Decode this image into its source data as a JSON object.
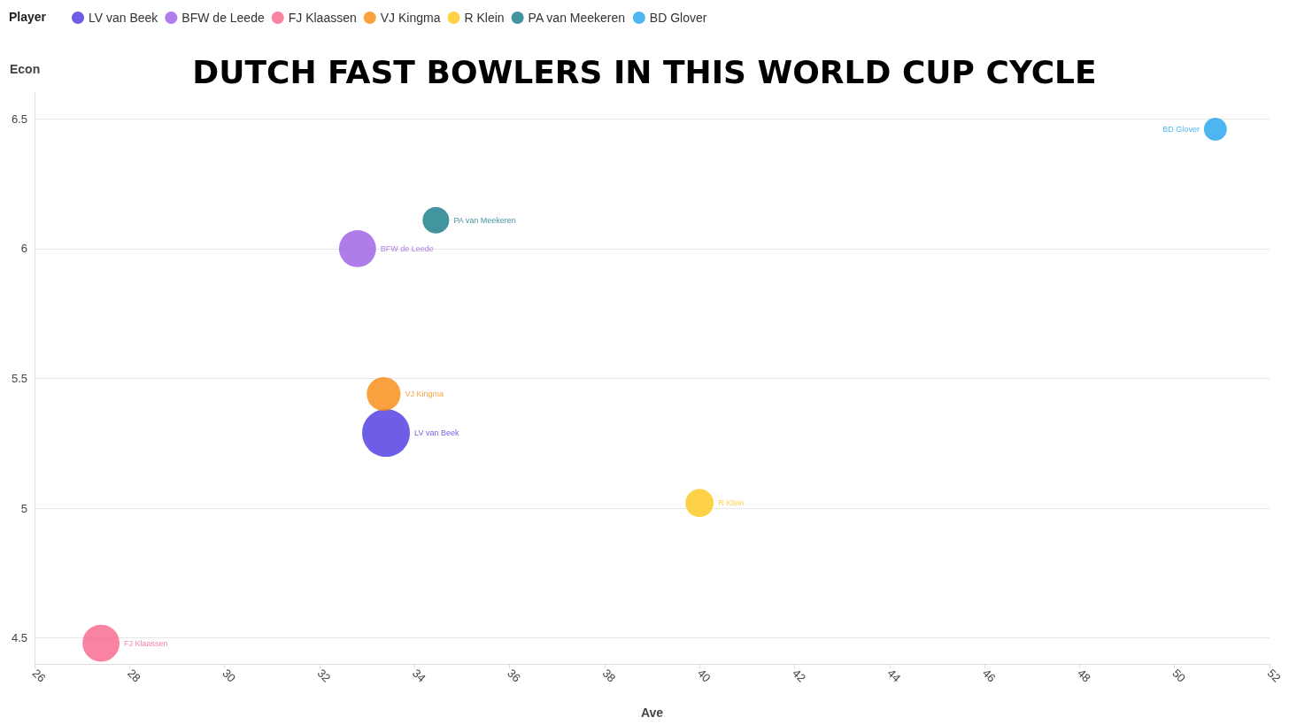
{
  "chart_data": {
    "type": "bubble",
    "title": "DUTCH FAST BOWLERS IN THIS WORLD CUP CYCLE",
    "xlabel": "Ave",
    "ylabel": "Econ",
    "legend_title": "Player",
    "legend": "top left",
    "grid": "y",
    "xlim": [
      26,
      52
    ],
    "xticks": [
      26,
      28,
      30,
      32,
      34,
      36,
      38,
      40,
      42,
      44,
      46,
      48,
      50,
      52
    ],
    "ylim": [
      4.4,
      6.6
    ],
    "yticks": [
      4.5,
      5,
      5.5,
      6,
      6.5
    ],
    "series": [
      {
        "name": "LV van Beek",
        "color": "#4a35e0",
        "x": [
          33.4
        ],
        "values": [
          5.29
        ],
        "sizes": [
          1
        ]
      },
      {
        "name": "BFW de Leede",
        "color": "#9b5de5",
        "x": [
          32.8
        ],
        "values": [
          6.0
        ],
        "sizes": [
          0.6
        ]
      },
      {
        "name": "FJ Klaassen",
        "color": "#f7648a",
        "x": [
          27.4
        ],
        "values": [
          4.48
        ],
        "sizes": [
          0.6
        ]
      },
      {
        "name": "VJ Kingma",
        "color": "#f8890f",
        "x": [
          33.35
        ],
        "values": [
          5.44
        ],
        "sizes": [
          0.5
        ]
      },
      {
        "name": "R Klein",
        "color": "#fcc718",
        "x": [
          40.0
        ],
        "values": [
          5.02
        ],
        "sizes": [
          0.35
        ]
      },
      {
        "name": "PA van Meekeren",
        "color": "#137a86",
        "x": [
          34.45
        ],
        "values": [
          6.11
        ],
        "sizes": [
          0.31
        ]
      },
      {
        "name": "BD Glover",
        "color": "#20a4ee",
        "x": [
          50.86
        ],
        "values": [
          6.46
        ],
        "sizes": [
          0.23
        ]
      }
    ]
  }
}
